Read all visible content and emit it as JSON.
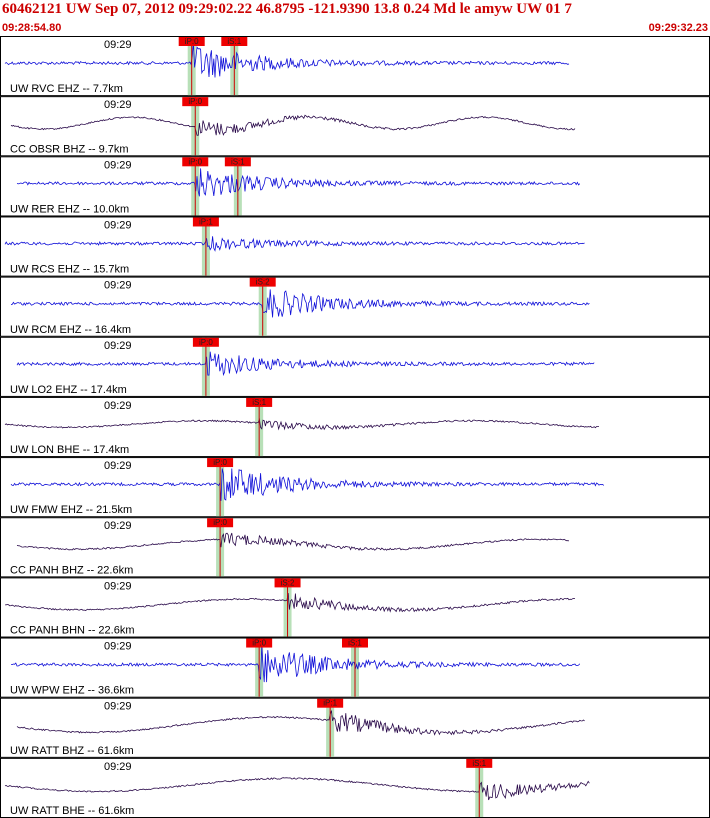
{
  "header": {
    "title": "60462121 UW Sep 07, 2012 09:29:02.22   46.8795 -121.9390 13.8 0.24 Md le amyw UW 01    7",
    "start_time": "09:28:54.80",
    "end_time": "09:29:32.23"
  },
  "colors": {
    "blue_trace": "#1010d8",
    "purple_trace": "#2a0a4a",
    "pick_box": "#ee0000",
    "pick_line": "#cc0000",
    "window": "#b8e0b8",
    "border": "#000000"
  },
  "channels": [
    {
      "label": "UW RVC EHZ -- 7.7km",
      "time": "09:29",
      "color": "blue",
      "amp": 0.6,
      "picks": [
        {
          "label": "iP:0",
          "time": 0.27
        },
        {
          "label": "iS:1",
          "time": 0.33
        }
      ]
    },
    {
      "label": "CC OBSR BHZ -- 9.7km",
      "time": "09:29",
      "color": "purple",
      "amp": 0.55,
      "picks": [
        {
          "label": "iP:0",
          "time": 0.275
        }
      ]
    },
    {
      "label": "UW RER EHZ -- 10.0km",
      "time": "09:29",
      "color": "blue",
      "amp": 0.5,
      "picks": [
        {
          "label": "iP:0",
          "time": 0.275
        },
        {
          "label": "iS:1",
          "time": 0.335
        }
      ]
    },
    {
      "label": "UW RCS EHZ -- 15.7km",
      "time": "09:29",
      "color": "blue",
      "amp": 0.2,
      "picks": [
        {
          "label": "iP:1",
          "time": 0.29
        }
      ]
    },
    {
      "label": "UW RCM EHZ -- 16.4km",
      "time": "09:29",
      "color": "blue",
      "amp": 0.5,
      "picks": [
        {
          "label": "iS:2",
          "time": 0.37
        }
      ]
    },
    {
      "label": "UW LO2 EHZ -- 17.4km",
      "time": "09:29",
      "color": "blue",
      "amp": 0.4,
      "picks": [
        {
          "label": "iP:0",
          "time": 0.29
        }
      ]
    },
    {
      "label": "UW LON BHE -- 17.4km",
      "time": "09:29",
      "color": "purple",
      "amp": 0.3,
      "picks": [
        {
          "label": "iS:1",
          "time": 0.365
        }
      ]
    },
    {
      "label": "UW FMW EHZ -- 21.5km",
      "time": "09:29",
      "color": "blue",
      "amp": 0.6,
      "picks": [
        {
          "label": "iP:0",
          "time": 0.31
        }
      ]
    },
    {
      "label": "CC PANH BHZ -- 22.6km",
      "time": "09:29",
      "color": "purple",
      "amp": 0.45,
      "picks": [
        {
          "label": "iP:0",
          "time": 0.31
        }
      ]
    },
    {
      "label": "CC PANH BHN -- 22.6km",
      "time": "09:29",
      "color": "purple",
      "amp": 0.5,
      "picks": [
        {
          "label": "iS:2",
          "time": 0.405
        }
      ]
    },
    {
      "label": "UW WPW EHZ -- 36.6km",
      "time": "09:29",
      "color": "blue",
      "amp": 0.6,
      "picks": [
        {
          "label": "iP:0",
          "time": 0.365
        },
        {
          "label": "iS:1",
          "time": 0.5
        }
      ]
    },
    {
      "label": "UW RATT BHZ -- 61.6km",
      "time": "09:29",
      "color": "purple",
      "amp": 0.7,
      "picks": [
        {
          "label": "iP:1",
          "time": 0.465
        }
      ]
    },
    {
      "label": "UW RATT BHE -- 61.6km",
      "time": "09:29",
      "color": "purple",
      "amp": 0.6,
      "picks": [
        {
          "label": "iS:1",
          "time": 0.675
        }
      ]
    }
  ]
}
